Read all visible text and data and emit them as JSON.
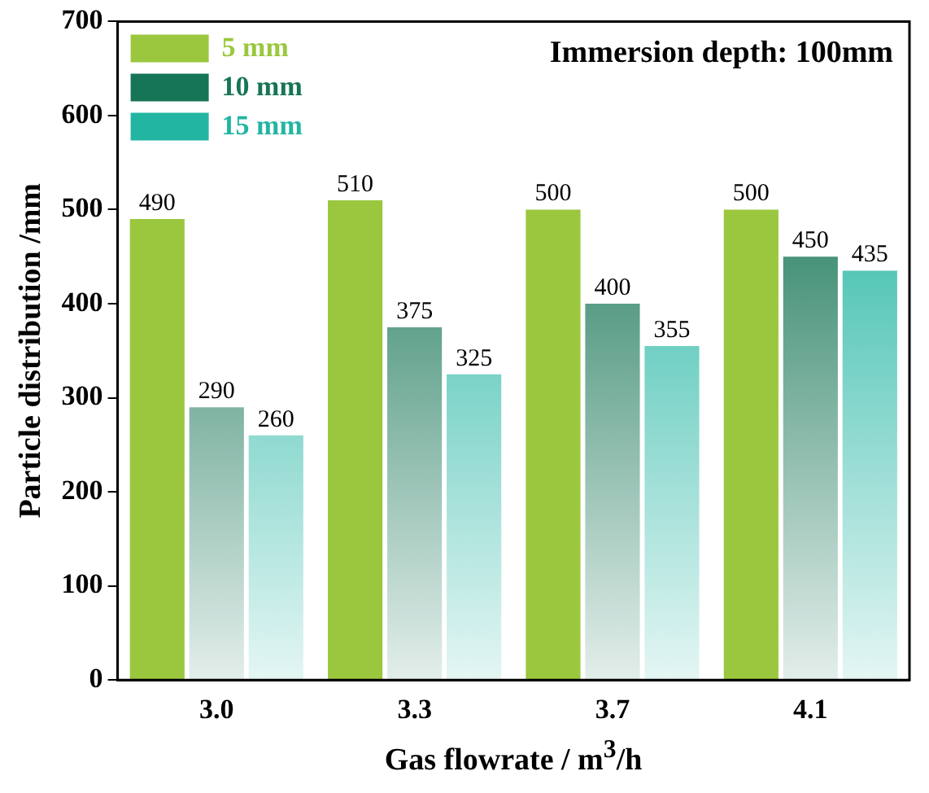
{
  "chart_data": {
    "type": "bar",
    "xlabel": "Gas flowrate / m$^{3}$/h",
    "ylabel": "Particle distribution /mm",
    "categories": [
      "3.0",
      "3.3",
      "3.7",
      "4.1"
    ],
    "series": [
      {
        "name": "5 mm",
        "color": "#9ac73e",
        "values": [
          490,
          510,
          500,
          500
        ]
      },
      {
        "name": "10 mm",
        "color": "#167556",
        "values": [
          290,
          375,
          400,
          450
        ]
      },
      {
        "name": "15 mm",
        "color": "#22b5a2",
        "values": [
          260,
          325,
          355,
          435
        ]
      }
    ],
    "ylim": [
      0,
      700
    ],
    "yticks": [
      0,
      100,
      200,
      300,
      400,
      500,
      600,
      700
    ],
    "grid": false,
    "legend": "top left",
    "data_labels": true,
    "annotations": [
      "Immersion depth: 100mm"
    ]
  }
}
